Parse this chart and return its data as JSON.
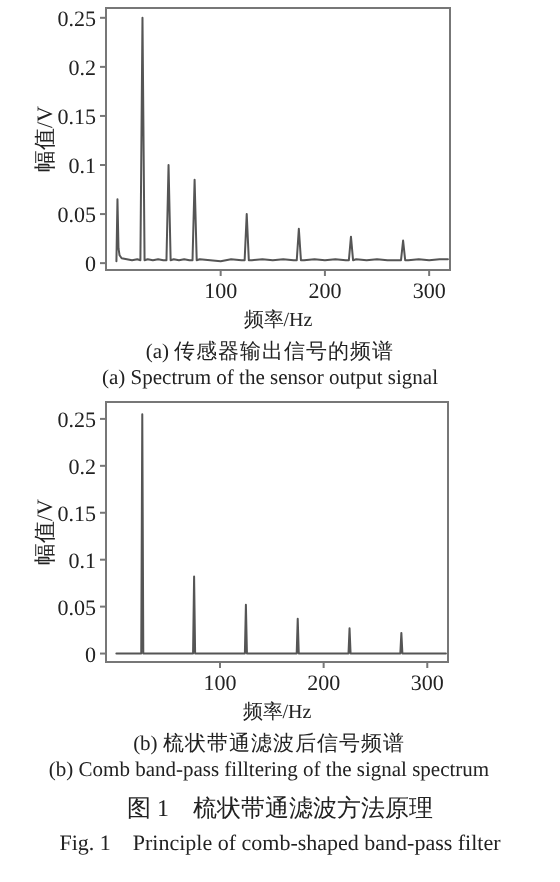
{
  "chart_data": [
    {
      "type": "line",
      "title": "(a) 传感器输出信号的频谱",
      "subtitle": "(a) Spectrum of the sensor output signal",
      "xlabel": "频率/Hz",
      "ylabel": "幅值/V",
      "xlim": [
        -10,
        320
      ],
      "ylim": [
        -0.007,
        0.26
      ],
      "xticks": [
        100,
        200,
        300
      ],
      "yticks": [
        0,
        0.05,
        0.1,
        {
          "value": 0.15,
          "label": "0.15"
        },
        0.2,
        0.25
      ],
      "grid": false,
      "series": [
        {
          "color": "#555555",
          "x": [
            0,
            1,
            2,
            3,
            5,
            10,
            15,
            20,
            23,
            25,
            27,
            30,
            35,
            40,
            45,
            48,
            50,
            52,
            55,
            60,
            65,
            70,
            73,
            75,
            77,
            80,
            90,
            100,
            110,
            120,
            123,
            125,
            127,
            130,
            140,
            150,
            160,
            170,
            173,
            175,
            177,
            180,
            190,
            200,
            210,
            220,
            223,
            225,
            227,
            230,
            240,
            250,
            260,
            270,
            273,
            275,
            277,
            280,
            290,
            300,
            310,
            318
          ],
          "values": [
            0.002,
            0.065,
            0.015,
            0.008,
            0.005,
            0.004,
            0.003,
            0.004,
            0.003,
            0.25,
            0.003,
            0.004,
            0.003,
            0.004,
            0.003,
            0.003,
            0.1,
            0.003,
            0.004,
            0.003,
            0.004,
            0.003,
            0.003,
            0.085,
            0.003,
            0.004,
            0.003,
            0.002,
            0.004,
            0.003,
            0.003,
            0.05,
            0.003,
            0.003,
            0.004,
            0.003,
            0.004,
            0.003,
            0.003,
            0.035,
            0.003,
            0.003,
            0.004,
            0.003,
            0.004,
            0.003,
            0.003,
            0.027,
            0.003,
            0.004,
            0.003,
            0.004,
            0.003,
            0.003,
            0.003,
            0.023,
            0.003,
            0.003,
            0.004,
            0.003,
            0.004,
            0.004
          ]
        }
      ]
    },
    {
      "type": "line",
      "title": "(b) 梳状带通滤波后信号频谱",
      "subtitle": "(b) Comb band-pass filltering of the signal spectrum",
      "xlabel": "频率/Hz",
      "ylabel": "幅值/V",
      "xlim": [
        -10,
        320
      ],
      "ylim": [
        -0.009,
        0.268
      ],
      "xticks": [
        100,
        200,
        300
      ],
      "yticks": [
        0,
        0.05,
        0.1,
        0.15,
        0.2,
        0.25
      ],
      "grid": false,
      "annotations": [
        "图 1　梳状带通滤波方法原理",
        "Fig. 1　Principle of comb-shaped band-pass filter"
      ],
      "series": [
        {
          "color": "#555555",
          "x": [
            0,
            24,
            25,
            26,
            74,
            75,
            76,
            124,
            125,
            126,
            174,
            175,
            176,
            224,
            225,
            226,
            274,
            275,
            276,
            318
          ],
          "values": [
            0,
            0,
            0.255,
            0,
            0,
            0.082,
            0,
            0,
            0.052,
            0,
            0,
            0.037,
            0,
            0,
            0.027,
            0,
            0,
            0.022,
            0,
            0
          ]
        }
      ]
    }
  ]
}
